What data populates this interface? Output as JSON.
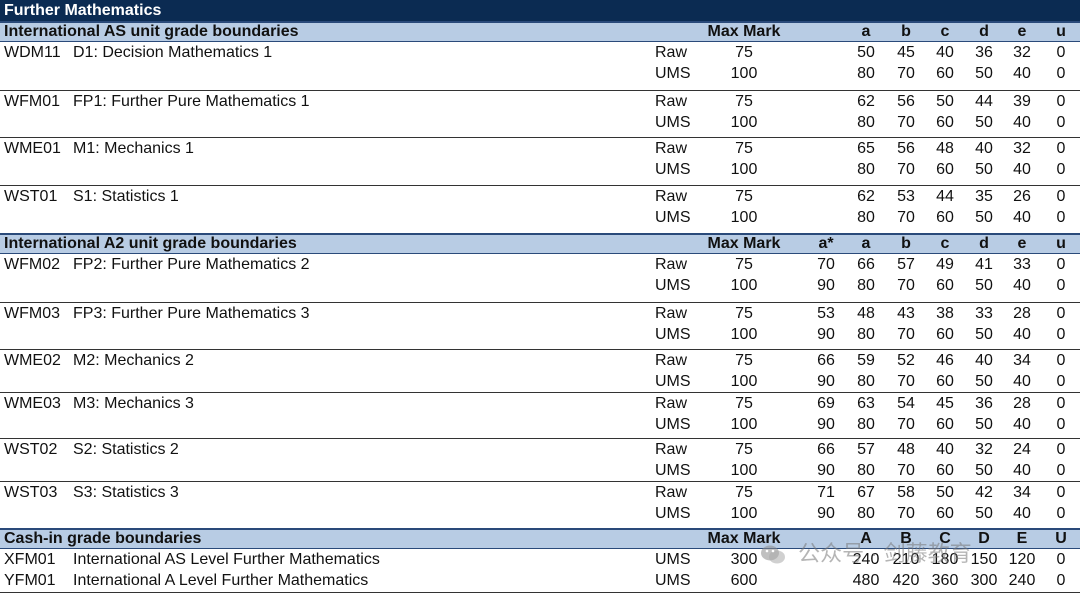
{
  "title": "Further Mathematics",
  "sections": [
    {
      "heading": "International AS unit grade boundaries",
      "max_mark_header": "Max Mark",
      "grade_headers": [
        "",
        "a",
        "b",
        "c",
        "d",
        "e",
        "u"
      ],
      "units": [
        {
          "code": "WDM11",
          "name": "D1: Decision Mathematics 1",
          "raw": {
            "label": "Raw",
            "max": "75",
            "grades": [
              "",
              "50",
              "45",
              "40",
              "36",
              "32",
              "0"
            ]
          },
          "ums": {
            "label": "UMS",
            "max": "100",
            "grades": [
              "",
              "80",
              "70",
              "60",
              "50",
              "40",
              "0"
            ]
          }
        },
        {
          "code": "WFM01",
          "name": "FP1: Further Pure Mathematics 1",
          "raw": {
            "label": "Raw",
            "max": "75",
            "grades": [
              "",
              "62",
              "56",
              "50",
              "44",
              "39",
              "0"
            ]
          },
          "ums": {
            "label": "UMS",
            "max": "100",
            "grades": [
              "",
              "80",
              "70",
              "60",
              "50",
              "40",
              "0"
            ]
          }
        },
        {
          "code": "WME01",
          "name": "M1: Mechanics 1",
          "raw": {
            "label": "Raw",
            "max": "75",
            "grades": [
              "",
              "65",
              "56",
              "48",
              "40",
              "32",
              "0"
            ]
          },
          "ums": {
            "label": "UMS",
            "max": "100",
            "grades": [
              "",
              "80",
              "70",
              "60",
              "50",
              "40",
              "0"
            ]
          }
        },
        {
          "code": "WST01",
          "name": "S1: Statistics 1",
          "raw": {
            "label": "Raw",
            "max": "75",
            "grades": [
              "",
              "62",
              "53",
              "44",
              "35",
              "26",
              "0"
            ]
          },
          "ums": {
            "label": "UMS",
            "max": "100",
            "grades": [
              "",
              "80",
              "70",
              "60",
              "50",
              "40",
              "0"
            ]
          }
        }
      ]
    },
    {
      "heading": "International A2 unit grade boundaries",
      "max_mark_header": "Max Mark",
      "grade_headers": [
        "a*",
        "a",
        "b",
        "c",
        "d",
        "e",
        "u"
      ],
      "units": [
        {
          "code": "WFM02",
          "name": "FP2: Further Pure Mathematics 2",
          "raw": {
            "label": "Raw",
            "max": "75",
            "grades": [
              "70",
              "66",
              "57",
              "49",
              "41",
              "33",
              "0"
            ]
          },
          "ums": {
            "label": "UMS",
            "max": "100",
            "grades": [
              "90",
              "80",
              "70",
              "60",
              "50",
              "40",
              "0"
            ]
          }
        },
        {
          "code": "WFM03",
          "name": "FP3: Further Pure Mathematics 3",
          "raw": {
            "label": "Raw",
            "max": "75",
            "grades": [
              "53",
              "48",
              "43",
              "38",
              "33",
              "28",
              "0"
            ]
          },
          "ums": {
            "label": "UMS",
            "max": "100",
            "grades": [
              "90",
              "80",
              "70",
              "60",
              "50",
              "40",
              "0"
            ]
          }
        },
        {
          "code": "WME02",
          "name": "M2: Mechanics 2",
          "raw": {
            "label": "Raw",
            "max": "75",
            "grades": [
              "66",
              "59",
              "52",
              "46",
              "40",
              "34",
              "0"
            ]
          },
          "ums": {
            "label": "UMS",
            "max": "100",
            "grades": [
              "90",
              "80",
              "70",
              "60",
              "50",
              "40",
              "0"
            ]
          }
        },
        {
          "code": "WME03",
          "name": "M3: Mechanics 3",
          "raw": {
            "label": "Raw",
            "max": "75",
            "grades": [
              "69",
              "63",
              "54",
              "45",
              "36",
              "28",
              "0"
            ]
          },
          "ums": {
            "label": "UMS",
            "max": "100",
            "grades": [
              "90",
              "80",
              "70",
              "60",
              "50",
              "40",
              "0"
            ]
          }
        },
        {
          "code": "WST02",
          "name": "S2: Statistics 2",
          "raw": {
            "label": "Raw",
            "max": "75",
            "grades": [
              "66",
              "57",
              "48",
              "40",
              "32",
              "24",
              "0"
            ]
          },
          "ums": {
            "label": "UMS",
            "max": "100",
            "grades": [
              "90",
              "80",
              "70",
              "60",
              "50",
              "40",
              "0"
            ]
          }
        },
        {
          "code": "WST03",
          "name": "S3: Statistics 3",
          "raw": {
            "label": "Raw",
            "max": "75",
            "grades": [
              "71",
              "67",
              "58",
              "50",
              "42",
              "34",
              "0"
            ]
          },
          "ums": {
            "label": "UMS",
            "max": "100",
            "grades": [
              "90",
              "80",
              "70",
              "60",
              "50",
              "40",
              "0"
            ]
          }
        }
      ]
    },
    {
      "heading": "Cash-in grade boundaries",
      "max_mark_header": "Max Mark",
      "grade_headers": [
        "",
        "A",
        "B",
        "C",
        "D",
        "E",
        "U"
      ],
      "rows": [
        {
          "code": "XFM01",
          "name": "International AS Level Further Mathematics",
          "label": "UMS",
          "max": "300",
          "grades": [
            "",
            "240",
            "210",
            "180",
            "150",
            "120",
            "0"
          ]
        },
        {
          "code": "YFM01",
          "name": "International A Level Further Mathematics",
          "label": "UMS",
          "max": "600",
          "grades": [
            "",
            "480",
            "420",
            "360",
            "300",
            "240",
            "0"
          ]
        }
      ]
    }
  ],
  "watermark": {
    "text": "公众号 · 剑藤教育",
    "icon": "wechat-icon",
    "color": "#8a8a8a"
  },
  "colors": {
    "title_bg": "#0b2b52",
    "header_bg": "#b8cce4"
  }
}
